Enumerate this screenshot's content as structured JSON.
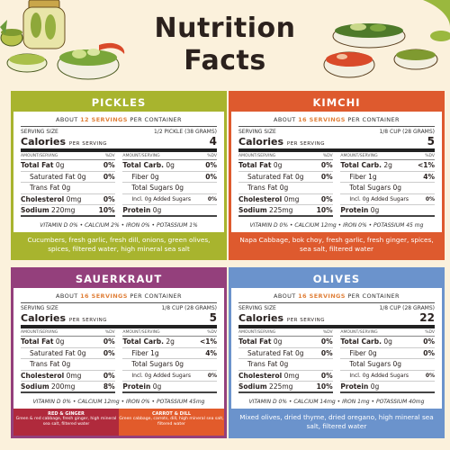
{
  "header": {
    "title_line1": "Nutrition",
    "title_line2": "Facts"
  },
  "labels": {
    "serving_size": "SERVING SIZE",
    "calories": "Calories",
    "per_serving": "PER SERVING",
    "amount_serving": "AMOUNT/SERVING",
    "dv": "%DV",
    "total_fat": "Total Fat",
    "saturated_fat": "Saturated Fat",
    "trans_fat": "Trans Fat",
    "cholesterol": "Cholesterol",
    "sodium": "Sodium",
    "total_carb": "Total Carb.",
    "fiber": "Fiber",
    "total_sugars": "Total Sugars",
    "added_sugars": "Incl. 0g Added Sugars",
    "protein": "Protein",
    "about": "ABOUT",
    "servings_word": "SERVINGS",
    "per_container": "PER CONTAINER"
  },
  "colors": {
    "pickles": "#a8b42e",
    "kimchi": "#de5a2e",
    "sauerkraut": "#94407c",
    "olives": "#6b93cc",
    "servings_accent": "#e0803a",
    "red_ginger": "#b02a3c",
    "carrot_dill": "#e25b2b"
  },
  "cards": {
    "pickles": {
      "name": "PICKLES",
      "servings": "12 SERVINGS",
      "serving_size": "1/2 PICKLE (38 GRAMS)",
      "calories": "4",
      "total_fat": "0g",
      "total_fat_dv": "0%",
      "sat_fat": "0g",
      "sat_fat_dv": "0%",
      "trans_fat": "0g",
      "cholesterol": "0mg",
      "cholesterol_dv": "0%",
      "sodium": "220mg",
      "sodium_dv": "10%",
      "carb": "0g",
      "carb_dv": "0%",
      "fiber": "0g",
      "fiber_dv": "0%",
      "sugars": "0g",
      "added_dv": "0%",
      "protein": "0g",
      "vitamins": "VITAMIN D 0% • CALCIUM 2% • IRON 0% • POTASSIUM 1%",
      "ingredients": "Cucumbers, fresh garlic, fresh dill, onions, green olives, spices, filtered water, high mineral sea salt"
    },
    "kimchi": {
      "name": "KIMCHI",
      "servings": "16 SERVINGS",
      "serving_size": "1/8 CUP (28 GRAMS)",
      "calories": "5",
      "total_fat": "0g",
      "total_fat_dv": "0%",
      "sat_fat": "0g",
      "sat_fat_dv": "0%",
      "trans_fat": "0g",
      "cholesterol": "0mg",
      "cholesterol_dv": "0%",
      "sodium": "225mg",
      "sodium_dv": "10%",
      "carb": "2g",
      "carb_dv": "<1%",
      "fiber": "1g",
      "fiber_dv": "4%",
      "sugars": "0g",
      "added_dv": "0%",
      "protein": "0g",
      "vitamins": "VITAMIN D 0% • CALCIUM 12mg • IRON 0% • POTASSIUM 45 mg",
      "ingredients": "Napa Cabbage, bok choy, fresh garlic, fresh ginger, spices, sea salt, filtered water"
    },
    "sauerkraut": {
      "name": "SAUERKRAUT",
      "servings": "16 SERVINGS",
      "serving_size": "1/8 CUP (28 GRAMS)",
      "calories": "5",
      "total_fat": "0g",
      "total_fat_dv": "0%",
      "sat_fat": "0g",
      "sat_fat_dv": "0%",
      "trans_fat": "0g",
      "cholesterol": "0mg",
      "cholesterol_dv": "0%",
      "sodium": "200mg",
      "sodium_dv": "8%",
      "carb": "2g",
      "carb_dv": "<1%",
      "fiber": "1g",
      "fiber_dv": "4%",
      "sugars": "0g",
      "added_dv": "0%",
      "protein": "0g",
      "vitamins": "VITAMIN D 0% • CALCIUM 12mg • IRON 0% • POTASSIUM 45mg",
      "variant1_title": "RED & GINGER",
      "variant1_text": "Green & red cabbage, fresh ginger, high mineral sea salt, filtered water",
      "variant2_title": "CARROT & DILL",
      "variant2_text": "Green cabbage, carrots, dill, high mineral sea salt, filtered water"
    },
    "olives": {
      "name": "OLIVES",
      "servings": "16 SERVINGS",
      "serving_size": "1/8 CUP (28 GRAMS)",
      "calories": "22",
      "total_fat": "0g",
      "total_fat_dv": "0%",
      "sat_fat": "0g",
      "sat_fat_dv": "0%",
      "trans_fat": "0g",
      "cholesterol": "0mg",
      "cholesterol_dv": "0%",
      "sodium": "225mg",
      "sodium_dv": "10%",
      "carb": "0g",
      "carb_dv": "0%",
      "fiber": "0g",
      "fiber_dv": "0%",
      "sugars": "0g",
      "added_dv": "0%",
      "protein": "0g",
      "vitamins": "VITAMIN D 0% • CALCIUM 14mg • IRON 1mg • POTASSIUM 40mg",
      "ingredients": "Mixed olives, dried thyme, dried oregano, high mineral sea salt, filtered water"
    }
  }
}
